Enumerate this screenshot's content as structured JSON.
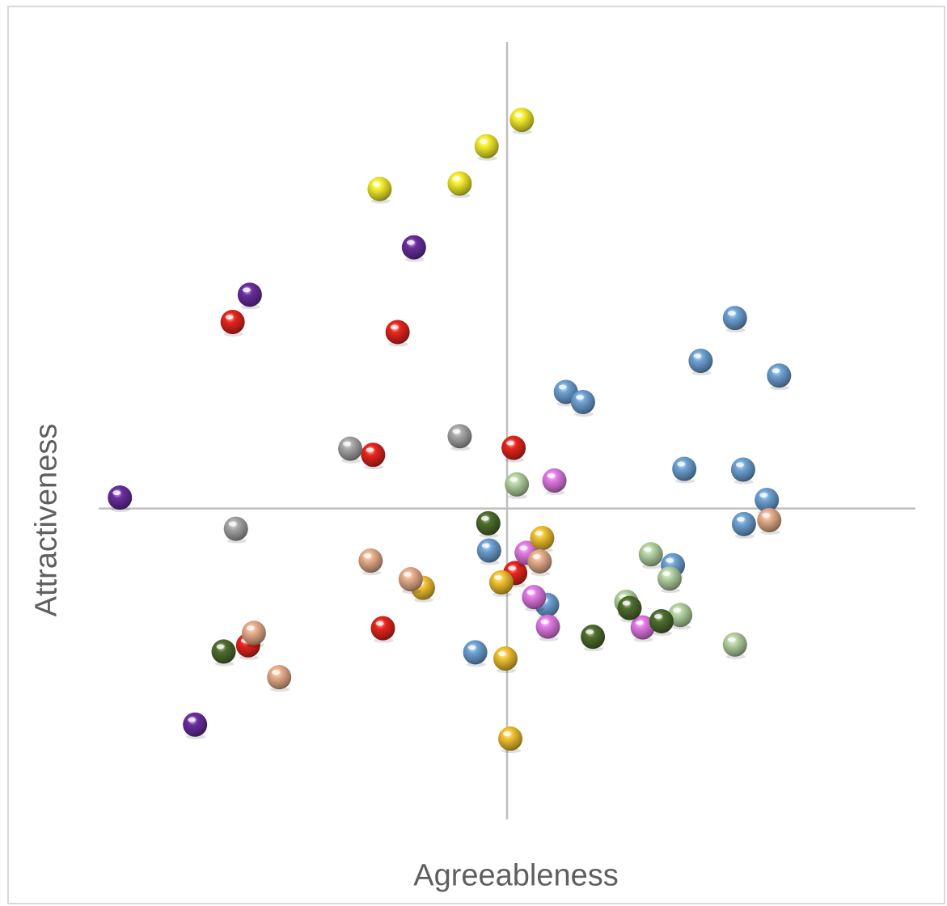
{
  "chart_data": {
    "type": "scatter",
    "xlabel": "Agreeableness",
    "ylabel": "Attractiveness",
    "xlim": [
      -5,
      5
    ],
    "ylim": [
      -4,
      6
    ],
    "grid": false,
    "axes": "crosshair-at-origin",
    "series": [
      {
        "color": "#f4ee2a",
        "points": [
          [
            0.18,
            5.0
          ],
          [
            -0.25,
            4.66
          ],
          [
            -0.58,
            4.18
          ],
          [
            -1.56,
            4.11
          ]
        ]
      },
      {
        "color": "#6a2ea0",
        "points": [
          [
            -1.14,
            3.36
          ],
          [
            -3.15,
            2.75
          ],
          [
            -4.74,
            0.14
          ],
          [
            -3.82,
            -2.78
          ]
        ]
      },
      {
        "color": "#e8251d",
        "points": [
          [
            -3.36,
            2.4
          ],
          [
            -1.34,
            2.27
          ],
          [
            0.08,
            0.78
          ],
          [
            -1.64,
            0.69
          ],
          [
            0.1,
            -0.83
          ],
          [
            -1.52,
            -1.54
          ],
          [
            -3.17,
            -1.76
          ]
        ]
      },
      {
        "color": "#6ea3d6",
        "points": [
          [
            2.79,
            2.45
          ],
          [
            2.37,
            1.9
          ],
          [
            3.33,
            1.71
          ],
          [
            0.72,
            1.5
          ],
          [
            0.93,
            1.37
          ],
          [
            2.17,
            0.51
          ],
          [
            2.89,
            0.5
          ],
          [
            3.18,
            0.11
          ],
          [
            2.9,
            -0.2
          ],
          [
            -0.22,
            -0.54
          ],
          [
            2.03,
            -0.73
          ],
          [
            0.49,
            -1.24
          ],
          [
            -0.39,
            -1.85
          ]
        ]
      },
      {
        "color": "#a8a8a8",
        "points": [
          [
            -0.58,
            0.93
          ],
          [
            -1.92,
            0.77
          ],
          [
            -3.32,
            -0.26
          ]
        ]
      },
      {
        "color": "#e37ae6",
        "points": [
          [
            0.58,
            0.36
          ],
          [
            0.24,
            -0.57
          ],
          [
            0.33,
            -1.14
          ],
          [
            0.5,
            -1.52
          ],
          [
            1.66,
            -1.53
          ]
        ]
      },
      {
        "color": "#b6d4a3",
        "points": [
          [
            0.12,
            0.31
          ],
          [
            1.76,
            -0.59
          ],
          [
            1.99,
            -0.9
          ],
          [
            1.46,
            -1.2
          ],
          [
            2.12,
            -1.37
          ],
          [
            2.79,
            -1.75
          ]
        ]
      },
      {
        "color": "#4f6e2e",
        "points": [
          [
            -0.23,
            -0.19
          ],
          [
            1.5,
            -1.28
          ],
          [
            1.89,
            -1.45
          ],
          [
            1.05,
            -1.65
          ],
          [
            -3.47,
            -1.84
          ]
        ]
      },
      {
        "color": "#f2c230",
        "points": [
          [
            0.43,
            -0.38
          ],
          [
            -1.03,
            -1.02
          ],
          [
            -0.07,
            -0.95
          ],
          [
            -0.02,
            -1.93
          ],
          [
            0.04,
            -2.96
          ]
        ]
      },
      {
        "color": "#eaaf8c",
        "points": [
          [
            3.21,
            -0.15
          ],
          [
            0.4,
            -0.68
          ],
          [
            -1.67,
            -0.67
          ],
          [
            -1.18,
            -0.91
          ],
          [
            -3.1,
            -1.6
          ],
          [
            -2.79,
            -2.17
          ]
        ]
      }
    ]
  }
}
